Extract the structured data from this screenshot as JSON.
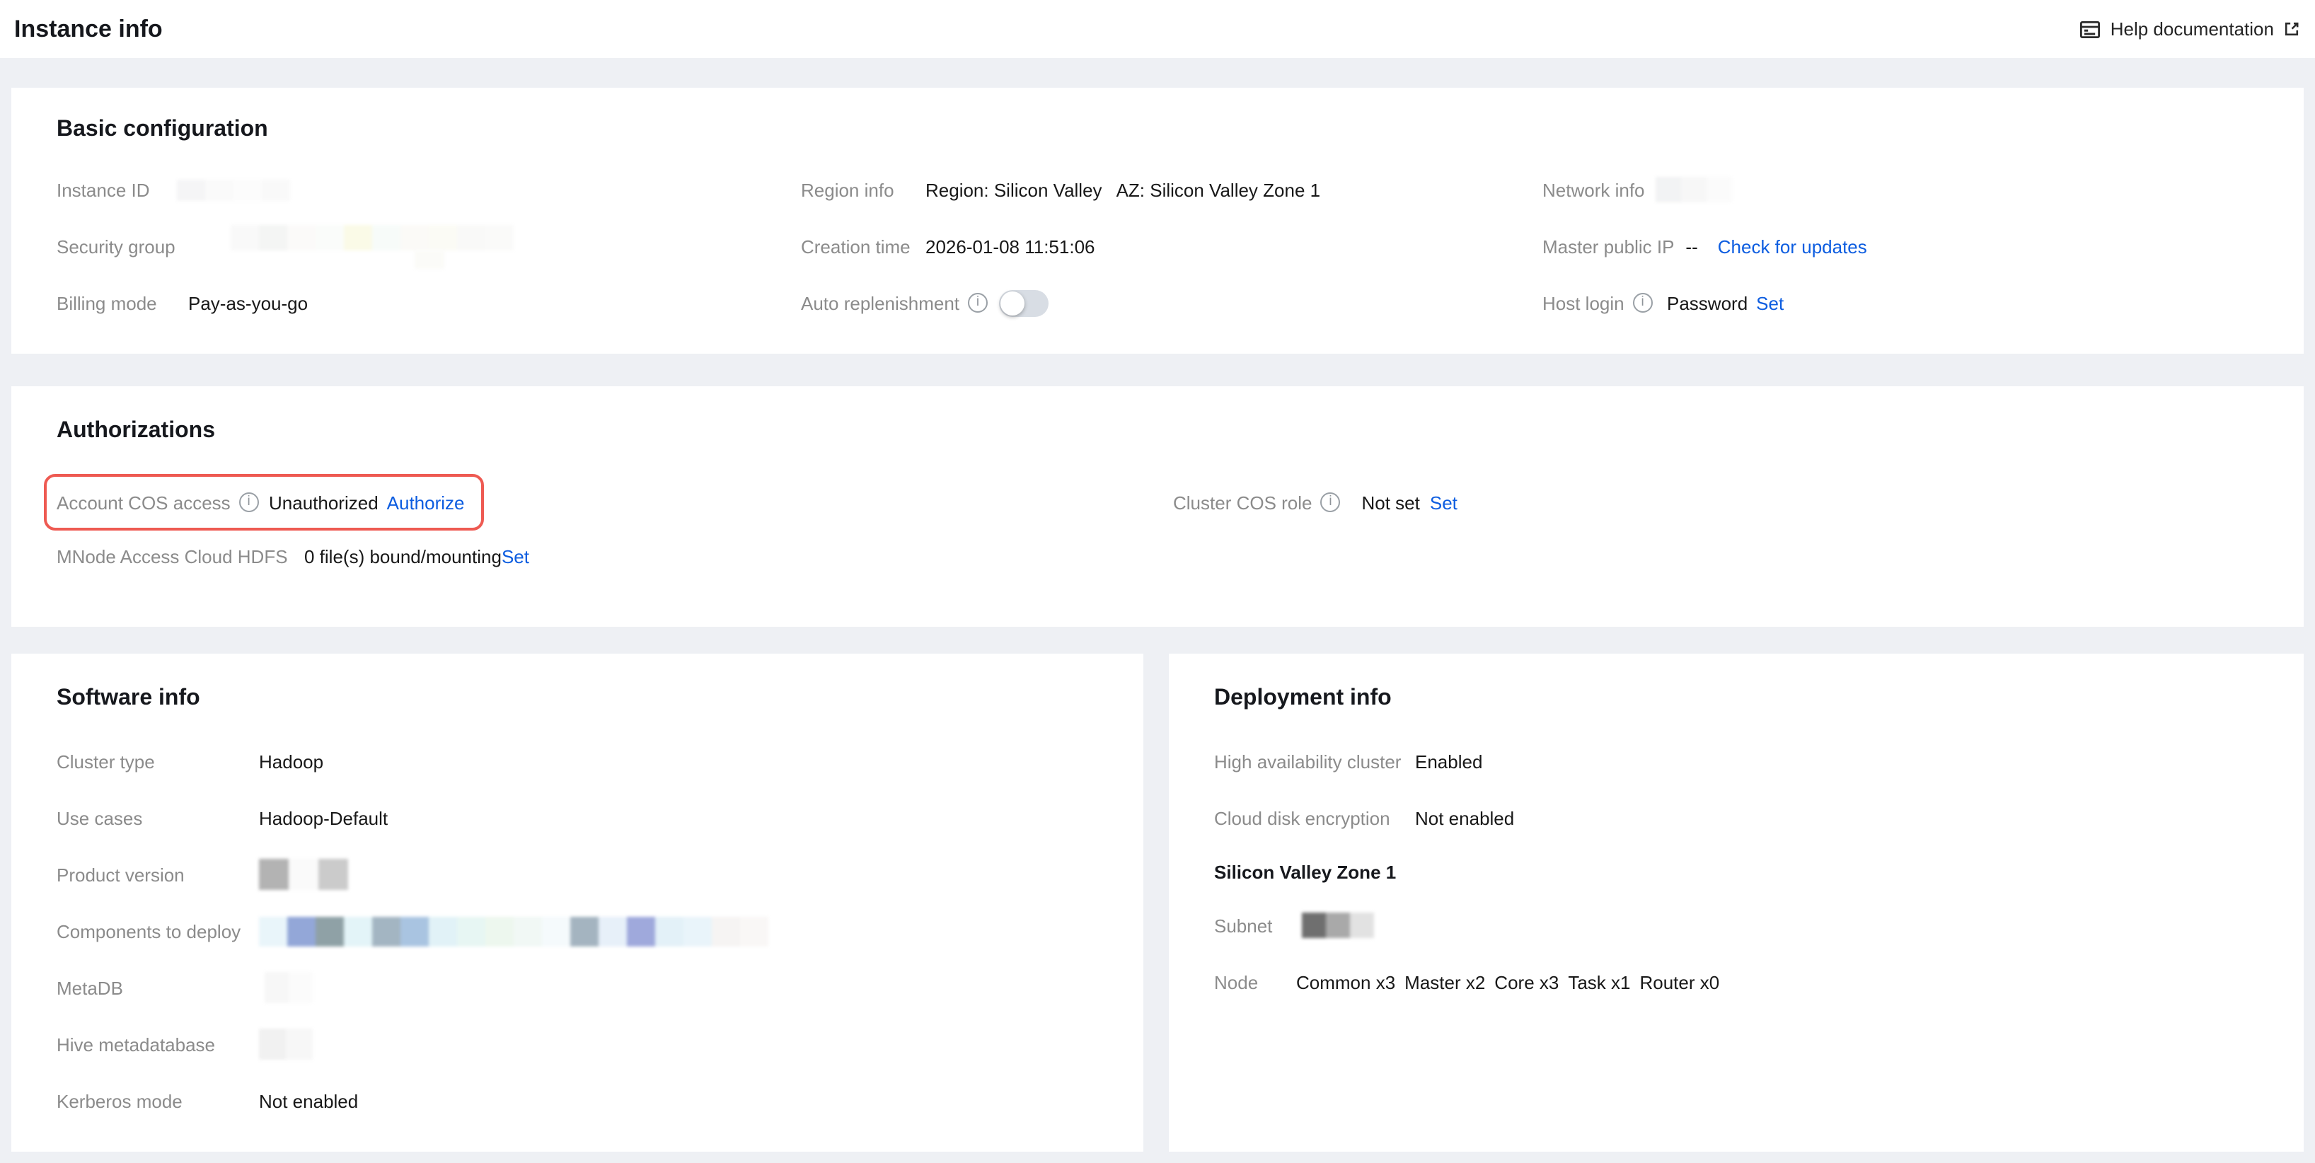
{
  "page": {
    "title": "Instance info",
    "help_label": "Help documentation"
  },
  "colors": {
    "page_bg": "#eef0f4",
    "card_bg": "#ffffff",
    "label_grey": "#8b8b8b",
    "value_dark": "#181818",
    "link_blue": "#0d5de0",
    "highlight_red": "#ee5a52",
    "toggle_track_off": "#d8dde4"
  },
  "icons": {
    "help_doc": "document-lines-icon",
    "external_link": "external-link-icon",
    "info": "info-circle-icon"
  },
  "basic_configuration": {
    "heading": "Basic configuration",
    "instance_id": {
      "label": "Instance ID"
    },
    "security_group": {
      "label": "Security group"
    },
    "billing_mode": {
      "label": "Billing mode",
      "value": "Pay-as-you-go"
    },
    "region_info": {
      "label": "Region info",
      "region": "Region: Silicon Valley",
      "az": "AZ: Silicon Valley Zone 1"
    },
    "creation_time": {
      "label": "Creation time",
      "value": "2026-01-08 11:51:06"
    },
    "auto_replenishment": {
      "label": "Auto replenishment",
      "toggle_state": "off"
    },
    "network_info": {
      "label": "Network info"
    },
    "master_public_ip": {
      "label": "Master public IP",
      "value": "--",
      "link": "Check for updates"
    },
    "host_login": {
      "label": "Host login",
      "value": "Password",
      "link": "Set"
    }
  },
  "authorizations": {
    "heading": "Authorizations",
    "account_cos_access": {
      "label": "Account COS access",
      "value": "Unauthorized",
      "link": "Authorize"
    },
    "cluster_cos_role": {
      "label": "Cluster COS role",
      "value": "Not set",
      "link": "Set"
    },
    "mnode_access_cloud_hdfs": {
      "label": "MNode Access Cloud HDFS",
      "value": "0 file(s) bound/mounting",
      "link": "Set"
    }
  },
  "software_info": {
    "heading": "Software info",
    "cluster_type": {
      "label": "Cluster type",
      "value": "Hadoop"
    },
    "use_cases": {
      "label": "Use cases",
      "value": "Hadoop-Default"
    },
    "product_version": {
      "label": "Product version"
    },
    "components_to_deploy": {
      "label": "Components to deploy"
    },
    "metadb": {
      "label": "MetaDB"
    },
    "hive_metadatabase": {
      "label": "Hive metadatabase"
    },
    "kerberos_mode": {
      "label": "Kerberos mode",
      "value": "Not enabled"
    }
  },
  "deployment_info": {
    "heading": "Deployment info",
    "high_availability": {
      "label": "High availability cluster",
      "value": "Enabled"
    },
    "cloud_disk_encryption": {
      "label": "Cloud disk encryption",
      "value": "Not enabled"
    },
    "zone_heading": "Silicon Valley Zone 1",
    "subnet": {
      "label": "Subnet"
    },
    "node": {
      "label": "Node",
      "value": "Common x3 Master x2 Core x3 Task x1 Router x0"
    }
  },
  "redactions": {
    "instance_id": {
      "h": 15,
      "w": 20,
      "colors": [
        "#f5f5f6",
        "#fafafa",
        "#fcfcfc",
        "#f9f9f9"
      ]
    },
    "security_group": {
      "h": 18,
      "w": 20,
      "colors": [
        "#f9f9f9",
        "#f4f5f4",
        "#fbfaf9",
        "#fafcfa",
        "#fafae7",
        "#f7fbf9",
        "#fbfaf7",
        "#fbfbf5",
        "#f9f9f8",
        "#fafaf9"
      ]
    },
    "security_group_tail": {
      "h": 13,
      "w": 21,
      "colors": [
        "#fbfbf8"
      ]
    },
    "network_info": {
      "h": 18,
      "w": 18,
      "colors": [
        "#f2f3f4",
        "#f7f7f7",
        "#fbfbfb"
      ]
    },
    "product_version": {
      "h": 22,
      "w": 21,
      "colors": [
        "#b3b3b3",
        "#fafafa",
        "#cbcbcb"
      ]
    },
    "components_to_deploy": {
      "h": 21,
      "w": 20,
      "colors": [
        "#e9f5fa",
        "#93a7d8",
        "#8fa1a6",
        "#e3f4f8",
        "#a3b5c2",
        "#a9c4e1",
        "#e1f2f7",
        "#e7f6f3",
        "#edf7ee",
        "#f1f8f5",
        "#f5fafc",
        "#a4b4c0",
        "#e7f0f9",
        "#9fa9dc",
        "#e3f1f8",
        "#e9f4fa",
        "#f6f4f3",
        "#f9f7f6"
      ]
    },
    "metadb": {
      "h": 22,
      "w": 17,
      "colors": [
        "#f7f7f7",
        "#fbfbfb"
      ]
    },
    "hive_metadatabase": {
      "h": 22,
      "w": 19,
      "colors": [
        "#f1f1f1",
        "#f7f7f7"
      ]
    },
    "subnet": {
      "h": 18,
      "w": 17,
      "colors": [
        "#6f6f6f",
        "#a9a9a9",
        "#e2e2e2"
      ]
    }
  }
}
